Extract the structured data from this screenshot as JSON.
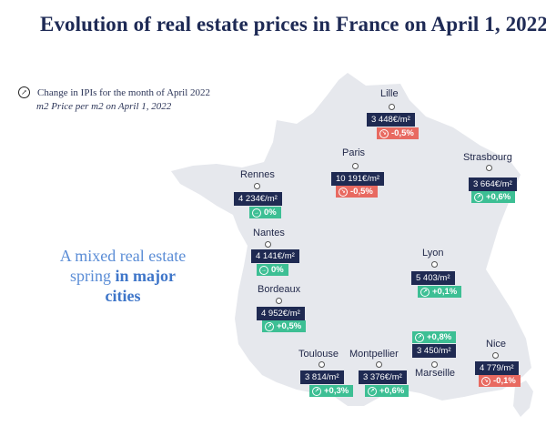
{
  "title": "Evolution of real estate prices in France on April 1, 2022",
  "legend": {
    "line1": "Change in IPIs for the month of April 2022",
    "line2": "m2 Price per m2 on April 1, 2022"
  },
  "tagline": {
    "part1": "A mixed real estate spring ",
    "part2": "in major cities"
  },
  "colors": {
    "map": "#e6e8ed",
    "price": "#1f2a52",
    "up": "#3dbf94",
    "down": "#e86a61",
    "title": "#1e2a55",
    "tagline": "#5b8dd6"
  },
  "cities": [
    {
      "name": "Lille",
      "price": "3 448€/m²",
      "change": "-0,5%",
      "trend": "down"
    },
    {
      "name": "Paris",
      "price": "10 191€/m²",
      "change": "-0,5%",
      "trend": "down"
    },
    {
      "name": "Strasbourg",
      "price": "3 664€/m²",
      "change": "+0,6%",
      "trend": "up"
    },
    {
      "name": "Rennes",
      "price": "4 234€/m²",
      "change": "0%",
      "trend": "up"
    },
    {
      "name": "Nantes",
      "price": "4 141€/m²",
      "change": "0%",
      "trend": "up"
    },
    {
      "name": "Lyon",
      "price": "5 403/m²",
      "change": "+0,1%",
      "trend": "up"
    },
    {
      "name": "Bordeaux",
      "price": "4 952€/m²",
      "change": "+0,5%",
      "trend": "up"
    },
    {
      "name": "Toulouse",
      "price": "3 814/m²",
      "change": "+0,3%",
      "trend": "up"
    },
    {
      "name": "Montpellier",
      "price": "3 376€/m²",
      "change": "+0,6%",
      "trend": "up"
    },
    {
      "name": "Marseille",
      "price": "3 450/m²",
      "change": "+0,8%",
      "trend": "up"
    },
    {
      "name": "Nice",
      "price": "4 779/m²",
      "change": "-0,1%",
      "trend": "down"
    }
  ]
}
